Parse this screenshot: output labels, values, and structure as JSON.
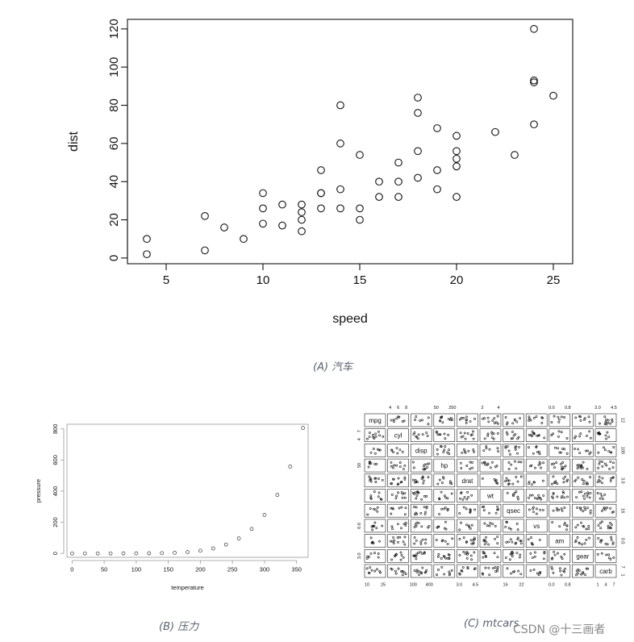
{
  "captions": {
    "a": "(A) 汽车",
    "b": "(B) 压力",
    "c": "(C) mtcars"
  },
  "watermark": "CSDN @十三画者",
  "chart_data": [
    {
      "id": "cars",
      "type": "scatter",
      "xlabel": "speed",
      "ylabel": "dist",
      "xlim": [
        3,
        26
      ],
      "ylim": [
        -3,
        125
      ],
      "xticks": [
        5,
        10,
        15,
        20,
        25
      ],
      "yticks": [
        0,
        20,
        40,
        60,
        80,
        100,
        120
      ],
      "points": [
        [
          4,
          2
        ],
        [
          4,
          10
        ],
        [
          7,
          4
        ],
        [
          7,
          22
        ],
        [
          8,
          16
        ],
        [
          9,
          10
        ],
        [
          10,
          18
        ],
        [
          10,
          26
        ],
        [
          10,
          34
        ],
        [
          11,
          17
        ],
        [
          11,
          28
        ],
        [
          12,
          14
        ],
        [
          12,
          20
        ],
        [
          12,
          24
        ],
        [
          12,
          28
        ],
        [
          13,
          26
        ],
        [
          13,
          34
        ],
        [
          13,
          34
        ],
        [
          13,
          46
        ],
        [
          14,
          26
        ],
        [
          14,
          36
        ],
        [
          14,
          60
        ],
        [
          14,
          80
        ],
        [
          15,
          20
        ],
        [
          15,
          26
        ],
        [
          15,
          54
        ],
        [
          16,
          32
        ],
        [
          16,
          40
        ],
        [
          17,
          32
        ],
        [
          17,
          40
        ],
        [
          17,
          50
        ],
        [
          18,
          42
        ],
        [
          18,
          56
        ],
        [
          18,
          76
        ],
        [
          18,
          84
        ],
        [
          19,
          36
        ],
        [
          19,
          46
        ],
        [
          19,
          68
        ],
        [
          20,
          32
        ],
        [
          20,
          48
        ],
        [
          20,
          52
        ],
        [
          20,
          56
        ],
        [
          20,
          64
        ],
        [
          22,
          66
        ],
        [
          23,
          54
        ],
        [
          24,
          70
        ],
        [
          24,
          92
        ],
        [
          24,
          93
        ],
        [
          24,
          120
        ],
        [
          25,
          85
        ]
      ]
    },
    {
      "id": "pressure",
      "type": "scatter",
      "xlabel": "temperature",
      "ylabel": "pressure",
      "xlim": [
        -8,
        368
      ],
      "ylim": [
        -25,
        830
      ],
      "xticks": [
        0,
        50,
        100,
        150,
        200,
        250,
        300,
        350
      ],
      "yticks": [
        0,
        200,
        400,
        600,
        800
      ],
      "points": [
        [
          0,
          0.0002
        ],
        [
          20,
          0.0012
        ],
        [
          40,
          0.006
        ],
        [
          60,
          0.03
        ],
        [
          80,
          0.09
        ],
        [
          100,
          0.27
        ],
        [
          120,
          0.75
        ],
        [
          140,
          1.85
        ],
        [
          160,
          4.2
        ],
        [
          180,
          8.8
        ],
        [
          200,
          17.3
        ],
        [
          220,
          32.1
        ],
        [
          240,
          57
        ],
        [
          260,
          96
        ],
        [
          280,
          157
        ],
        [
          300,
          247
        ],
        [
          320,
          376
        ],
        [
          340,
          558
        ],
        [
          360,
          806
        ]
      ]
    },
    {
      "id": "mtcars",
      "type": "scatter-matrix",
      "variables": [
        "mpg",
        "cyl",
        "disp",
        "hp",
        "drat",
        "wt",
        "qsec",
        "vs",
        "am",
        "gear",
        "carb"
      ],
      "top_ticks": {
        "cyl": [
          "4",
          "6",
          "8"
        ],
        "hp": [
          "50",
          "250"
        ],
        "wt": [
          "2",
          "4"
        ],
        "am": [
          "0.0",
          "0.8"
        ],
        "carb": [
          "3.0",
          "4.5"
        ]
      },
      "bottom_ticks": {
        "mpg": [
          "10",
          "25"
        ],
        "disp": [
          "100",
          "400"
        ],
        "drat": [
          "3.0",
          "4.5"
        ],
        "qsec": [
          "16",
          "22"
        ],
        "am": [
          "0.0",
          "0.8"
        ],
        "carb": [
          "1",
          "4",
          "7"
        ]
      },
      "left_ticks": {
        "cyl": [
          "4",
          "7"
        ],
        "hp": [
          "50"
        ],
        "vs": [
          "0.6"
        ],
        "gear": [
          "3.0"
        ]
      },
      "right_ticks": {
        "mpg": [
          "12"
        ],
        "disp": [
          "100"
        ],
        "drat": [
          "3.0"
        ],
        "qsec": [
          "16"
        ],
        "am": [
          "0.0"
        ],
        "carb": [
          "1",
          "7"
        ]
      }
    }
  ]
}
